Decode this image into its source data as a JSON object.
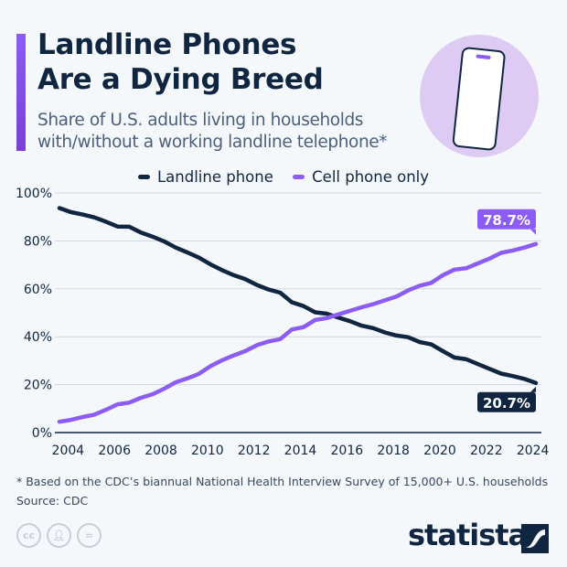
{
  "header": {
    "title_line1": "Landline Phones",
    "title_line2": "Are a Dying Breed",
    "subtitle_line1": "Share of U.S. adults living in households",
    "subtitle_line2": "with/without a working landline telephone*"
  },
  "colors": {
    "landline": "#0f2540",
    "cell": "#8b5cf6",
    "accent": "#8b5cf6",
    "circle": "#decbf3"
  },
  "chart_data": {
    "type": "line",
    "title": "",
    "xlabel": "",
    "ylabel": "",
    "ylim": [
      0,
      100
    ],
    "xlim": [
      2003.75,
      2024.25
    ],
    "grid": true,
    "legend_position": "top-center",
    "x_ticks": [
      "2004",
      "2006",
      "2008",
      "2010",
      "2012",
      "2014",
      "2016",
      "2018",
      "2020",
      "2022",
      "2024"
    ],
    "y_ticks": [
      "0%",
      "20%",
      "40%",
      "60%",
      "80%",
      "100%"
    ],
    "x": [
      2003.75,
      2004.25,
      2004.75,
      2005.25,
      2005.75,
      2006.25,
      2006.75,
      2007.25,
      2007.75,
      2008.25,
      2008.75,
      2009.25,
      2009.75,
      2010.25,
      2010.75,
      2011.25,
      2011.75,
      2012.25,
      2012.75,
      2013.25,
      2013.75,
      2014.25,
      2014.75,
      2015.25,
      2015.75,
      2016.25,
      2016.75,
      2017.25,
      2017.75,
      2018.25,
      2018.75,
      2019.25,
      2019.75,
      2020.25,
      2020.75,
      2021.25,
      2021.75,
      2022.25,
      2022.75,
      2023.25,
      2023.75,
      2024.25
    ],
    "series": [
      {
        "name": "Landline phone",
        "values": [
          93.7,
          92,
          91,
          89.8,
          88,
          86,
          85.9,
          83.5,
          81.8,
          79.8,
          77.2,
          75.2,
          73,
          70.2,
          67.8,
          65.7,
          64,
          61.6,
          59.7,
          58.4,
          54.4,
          52.8,
          50.2,
          49.6,
          48,
          46.5,
          44.6,
          43.6,
          41.8,
          40.5,
          39.8,
          37.8,
          36.8,
          34,
          31.3,
          30.6,
          28.6,
          26.6,
          24.6,
          23.6,
          22.4,
          20.7
        ],
        "end_label": "20.7%"
      },
      {
        "name": "Cell phone only",
        "values": [
          4.5,
          5.3,
          6.5,
          7.5,
          9.5,
          11.8,
          12.5,
          14.5,
          16,
          18.3,
          21,
          22.6,
          24.5,
          27.7,
          30.2,
          32.2,
          34,
          36.5,
          38,
          39,
          43,
          44,
          47,
          47.8,
          49.3,
          50.8,
          52.3,
          53.6,
          55.2,
          56.8,
          59.3,
          61.3,
          62.5,
          65.7,
          68,
          68.6,
          70.6,
          72.6,
          75,
          76,
          77.2,
          78.7
        ],
        "end_label": "78.7%"
      }
    ]
  },
  "footer": {
    "note": "* Based on the CDC’s biannual National Health Interview Survey of 15,000+ U.S. households",
    "source": "Source: CDC",
    "license_icons": [
      "cc",
      "by",
      "nd"
    ],
    "cc_text": "cc",
    "logo": "statista"
  }
}
